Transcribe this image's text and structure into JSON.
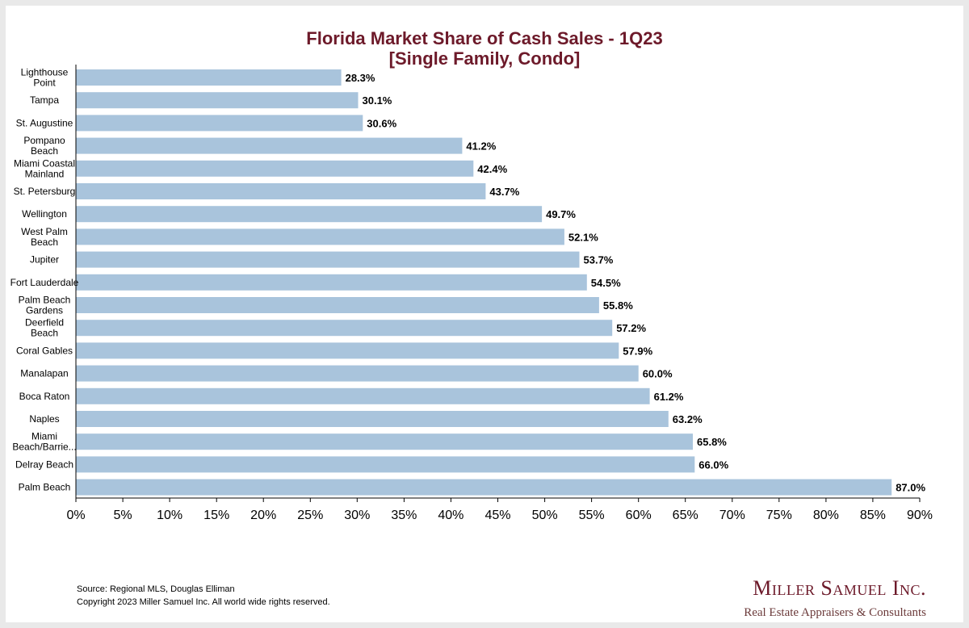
{
  "title_line1": "Florida Market Share of Cash Sales - 1Q23",
  "title_line2": "[Single Family, Condo]",
  "footer": {
    "source": "Source: Regional MLS, Douglas Elliman",
    "copyright": "Copyright 2023 Miller Samuel Inc.  All world wide rights reserved."
  },
  "logo": {
    "name": "Miller Samuel Inc.",
    "tagline": "Real Estate Appraisers & Consultants"
  },
  "colors": {
    "bar": "#a9c4dc",
    "title": "#6d1a2a"
  },
  "chart_data": {
    "type": "bar",
    "orientation": "horizontal",
    "title": "Florida Market Share of Cash Sales - 1Q23 [Single Family, Condo]",
    "categories": [
      [
        "Lighthouse",
        "Point"
      ],
      [
        "Tampa"
      ],
      [
        "St. Augustine"
      ],
      [
        "Pompano",
        "Beach"
      ],
      [
        "Miami Coastal",
        "Mainland"
      ],
      [
        "St. Petersburg"
      ],
      [
        "Wellington"
      ],
      [
        "West Palm",
        "Beach"
      ],
      [
        "Jupiter"
      ],
      [
        "Fort Lauderdale"
      ],
      [
        "Palm Beach",
        "Gardens"
      ],
      [
        "Deerfield",
        "Beach"
      ],
      [
        "Coral Gables"
      ],
      [
        "Manalapan"
      ],
      [
        "Boca Raton"
      ],
      [
        "Naples"
      ],
      [
        "Miami",
        "Beach/Barrie..."
      ],
      [
        "Delray Beach"
      ],
      [
        "Palm Beach"
      ]
    ],
    "values": [
      28.3,
      30.1,
      30.6,
      41.2,
      42.4,
      43.7,
      49.7,
      52.1,
      53.7,
      54.5,
      55.8,
      57.2,
      57.9,
      60.0,
      61.2,
      63.2,
      65.8,
      66.0,
      87.0
    ],
    "value_labels": [
      "28.3%",
      "30.1%",
      "30.6%",
      "41.2%",
      "42.4%",
      "43.7%",
      "49.7%",
      "52.1%",
      "53.7%",
      "54.5%",
      "55.8%",
      "57.2%",
      "57.9%",
      "60.0%",
      "61.2%",
      "63.2%",
      "65.8%",
      "66.0%",
      "87.0%"
    ],
    "xlim": [
      0,
      90
    ],
    "xticks": [
      "0%",
      "5%",
      "10%",
      "15%",
      "20%",
      "25%",
      "30%",
      "35%",
      "40%",
      "45%",
      "50%",
      "55%",
      "60%",
      "65%",
      "70%",
      "75%",
      "80%",
      "85%",
      "90%"
    ],
    "grid": false,
    "legend": "none"
  }
}
